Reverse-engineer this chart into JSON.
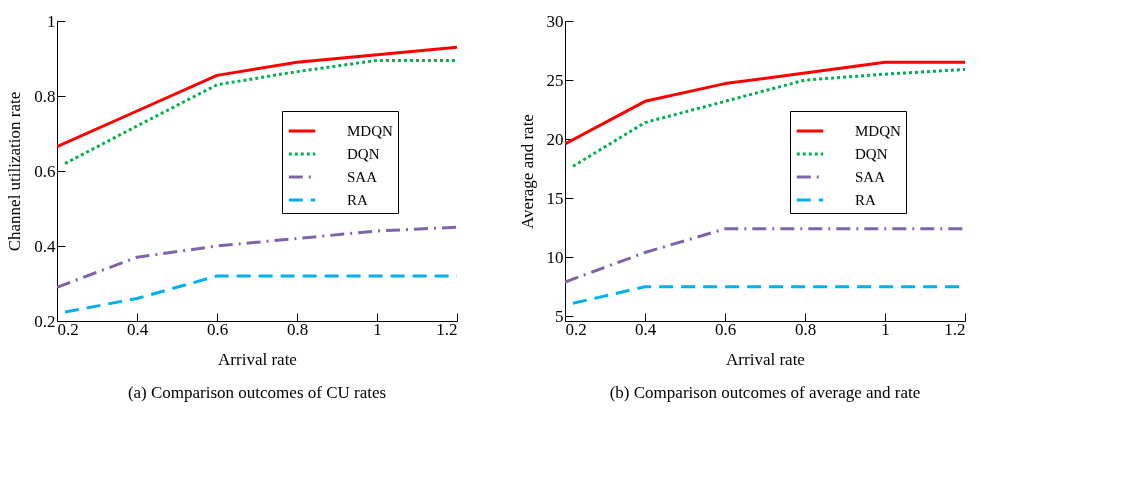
{
  "chart_data": [
    {
      "type": "line",
      "xlabel": "Arrival rate",
      "ylabel": "Channel utilization rate",
      "xlim": [
        0.2,
        1.2
      ],
      "xticks": [
        0.2,
        0.4,
        0.6,
        0.8,
        1,
        1.2
      ],
      "ylim": [
        0.2,
        1
      ],
      "yticks": [
        0.2,
        0.4,
        0.6,
        0.8,
        1
      ],
      "grid": false,
      "legend": "right",
      "annotations": [
        "(a) Comparison outcomes of CU rates"
      ],
      "series": [
        {
          "name": "MDQN",
          "color": "#ff0000",
          "line_style": "solid",
          "x": [
            0.2,
            0.4,
            0.6,
            0.8,
            1,
            1.2
          ],
          "values": [
            0.665,
            0.76,
            0.855,
            0.89,
            0.91,
            0.93
          ]
        },
        {
          "name": "DQN",
          "color": "#00b050",
          "line_style": "dotted",
          "x": [
            0.22,
            0.4,
            0.6,
            0.8,
            1,
            1.2
          ],
          "values": [
            0.62,
            0.72,
            0.83,
            0.865,
            0.895,
            0.895
          ]
        },
        {
          "name": "SAA",
          "color": "#7f64a8",
          "line_style": "dashdot",
          "x": [
            0.2,
            0.4,
            0.6,
            0.8,
            1,
            1.2
          ],
          "values": [
            0.29,
            0.37,
            0.4,
            0.42,
            0.44,
            0.45
          ]
        },
        {
          "name": "RA",
          "color": "#00b0f0",
          "line_style": "dashed",
          "x": [
            0.22,
            0.4,
            0.6,
            0.8,
            1,
            1.2
          ],
          "values": [
            0.224,
            0.26,
            0.32,
            0.32,
            0.32,
            0.32
          ]
        }
      ]
    },
    {
      "type": "line",
      "xlabel": "Arrival rate",
      "ylabel": "Average and rate",
      "xlim": [
        0.2,
        1.2
      ],
      "xticks": [
        0.2,
        0.4,
        0.6,
        0.8,
        1,
        1.2
      ],
      "ylim": [
        4.6,
        30
      ],
      "yticks": [
        5,
        10,
        15,
        20,
        25,
        30
      ],
      "grid": false,
      "legend": "right",
      "annotations": [
        "(b) Comparison outcomes of average and rate"
      ],
      "series": [
        {
          "name": "MDQN",
          "color": "#ff0000",
          "line_style": "solid",
          "x": [
            0.2,
            0.4,
            0.6,
            0.8,
            1,
            1.2
          ],
          "values": [
            19.6,
            23.2,
            24.7,
            25.6,
            26.5,
            26.5
          ]
        },
        {
          "name": "DQN",
          "color": "#00b050",
          "line_style": "dotted",
          "x": [
            0.22,
            0.4,
            0.6,
            0.8,
            1,
            1.2
          ],
          "values": [
            17.7,
            21.4,
            23.2,
            25.0,
            25.5,
            25.9
          ]
        },
        {
          "name": "SAA",
          "color": "#7f64a8",
          "line_style": "dashdot",
          "x": [
            0.2,
            0.4,
            0.6,
            0.8,
            1,
            1.2
          ],
          "values": [
            7.9,
            10.4,
            12.4,
            12.4,
            12.4,
            12.4
          ]
        },
        {
          "name": "RA",
          "color": "#00b0f0",
          "line_style": "dashed",
          "x": [
            0.22,
            0.4,
            0.6,
            0.8,
            1,
            1.2
          ],
          "values": [
            6.1,
            7.5,
            7.5,
            7.5,
            7.5,
            7.5
          ]
        }
      ]
    }
  ]
}
